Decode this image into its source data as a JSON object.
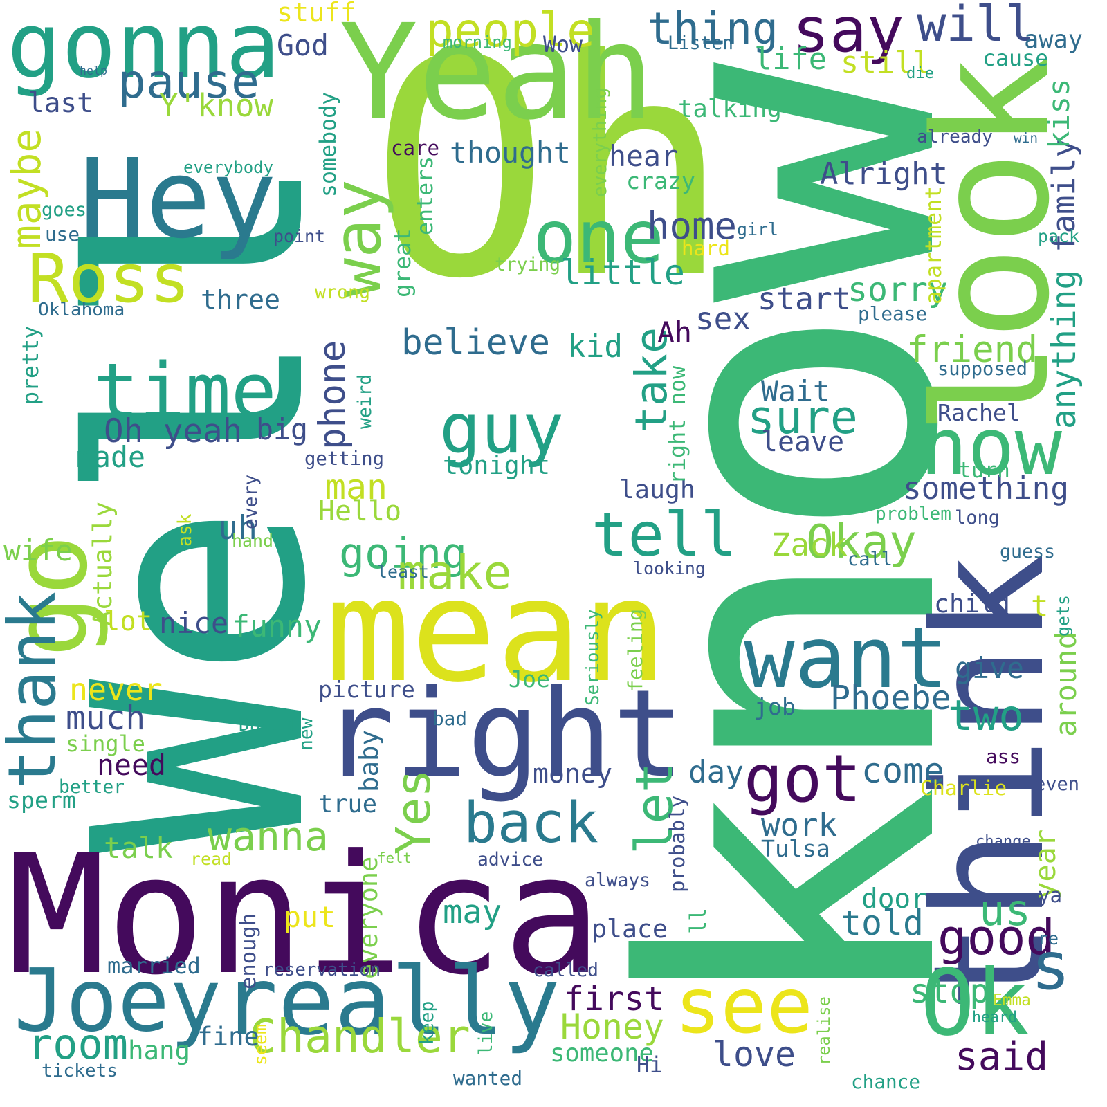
{
  "words": [
    {
      "text": "Well",
      "color": "#22a085"
    },
    {
      "text": "Oh",
      "color": "#9ad83b"
    },
    {
      "text": "know",
      "color": "#3cb876"
    },
    {
      "text": "Yeah",
      "color": "#7bcf4d"
    },
    {
      "text": "Monica",
      "color": "#440a5c"
    },
    {
      "text": "mean",
      "color": "#dce21c"
    },
    {
      "text": "look",
      "color": "#7bcf4d"
    },
    {
      "text": "think",
      "color": "#3e4e8a"
    },
    {
      "text": "right",
      "color": "#3e4e8a"
    },
    {
      "text": "really",
      "color": "#2a7a8e"
    },
    {
      "text": "Hey",
      "color": "#2a7a8e"
    },
    {
      "text": "gonna",
      "color": "#22a085"
    },
    {
      "text": "go",
      "color": "#9ad83b"
    },
    {
      "text": "Joey",
      "color": "#2a7a8e"
    },
    {
      "text": "Ross",
      "color": "#c2df23"
    },
    {
      "text": "want",
      "color": "#2a7a8e"
    },
    {
      "text": "time",
      "color": "#22a085"
    },
    {
      "text": "one",
      "color": "#3cb876"
    },
    {
      "text": "now",
      "color": "#3cb876"
    },
    {
      "text": "guy",
      "color": "#22a085"
    },
    {
      "text": "Ok",
      "color": "#3cb876"
    },
    {
      "text": "see",
      "color": "#ece51b"
    },
    {
      "text": "got",
      "color": "#440a5c"
    },
    {
      "text": "say",
      "color": "#440a5c"
    },
    {
      "text": "tell",
      "color": "#22a085"
    },
    {
      "text": "thank",
      "color": "#2a7a8e"
    },
    {
      "text": "back",
      "color": "#2a7a8e"
    },
    {
      "text": "way",
      "color": "#7bcf4d"
    },
    {
      "text": "thing",
      "color": "#2f6c8e"
    },
    {
      "text": "Yes",
      "color": "#7bcf4d"
    },
    {
      "text": "let",
      "color": "#3cb876"
    },
    {
      "text": "pause",
      "color": "#2f6c8e"
    },
    {
      "text": "people",
      "color": "#c2df23"
    },
    {
      "text": "sure",
      "color": "#22a085"
    },
    {
      "text": "Chandler",
      "color": "#9ad83b"
    },
    {
      "text": "Okay",
      "color": "#7bcf4d"
    },
    {
      "text": "good",
      "color": "#440a5c"
    },
    {
      "text": "s",
      "color": "#2f6c8e"
    },
    {
      "text": "room",
      "color": "#22a085"
    },
    {
      "text": "wanna",
      "color": "#7bcf4d"
    },
    {
      "text": "going",
      "color": "#3cb876"
    },
    {
      "text": "will",
      "color": "#3e4e8a"
    },
    {
      "text": "make",
      "color": "#9ad83b"
    },
    {
      "text": "two",
      "color": "#22a085"
    },
    {
      "text": "take",
      "color": "#22a085"
    },
    {
      "text": "phone",
      "color": "#3e4e8a"
    },
    {
      "text": "great",
      "color": "#3cb876"
    },
    {
      "text": "us",
      "color": "#3cb876"
    },
    {
      "text": "told",
      "color": "#2a7a8e"
    },
    {
      "text": "Alright",
      "color": "#3e4e8a"
    },
    {
      "text": "believe",
      "color": "#2f6c8e"
    },
    {
      "text": "little",
      "color": "#22a085"
    },
    {
      "text": "Oh yeah",
      "color": "#3e4e8a"
    },
    {
      "text": "sorry",
      "color": "#3cb876"
    },
    {
      "text": "friend",
      "color": "#7bcf4d"
    },
    {
      "text": "something",
      "color": "#3e4e8a"
    },
    {
      "text": "Phoebe",
      "color": "#2f6c8e"
    },
    {
      "text": "tonight",
      "color": "#22a085"
    },
    {
      "text": "home",
      "color": "#3e4e8a"
    },
    {
      "text": "start",
      "color": "#3e4e8a"
    },
    {
      "text": "first",
      "color": "#440a5c"
    },
    {
      "text": "love",
      "color": "#3e4e8a"
    },
    {
      "text": "Honey",
      "color": "#9ad83b"
    },
    {
      "text": "someone",
      "color": "#3cb876"
    },
    {
      "text": "said",
      "color": "#440a5c"
    },
    {
      "text": "stop",
      "color": "#3cb876"
    },
    {
      "text": "come",
      "color": "#2f6c8e"
    },
    {
      "text": "still",
      "color": "#c2df23"
    },
    {
      "text": "life",
      "color": "#3cb876"
    },
    {
      "text": "thought",
      "color": "#2f6c8e"
    },
    {
      "text": "talking",
      "color": "#3cb876"
    },
    {
      "text": "hear",
      "color": "#3e4e8a"
    },
    {
      "text": "stuff",
      "color": "#ece51b"
    },
    {
      "text": "Y'know",
      "color": "#9ad83b"
    },
    {
      "text": "last",
      "color": "#3e4e8a"
    },
    {
      "text": "God",
      "color": "#3e4e8a"
    },
    {
      "text": "maybe",
      "color": "#c2df23"
    },
    {
      "text": "three",
      "color": "#2f6c8e"
    },
    {
      "text": "kid",
      "color": "#22a085"
    },
    {
      "text": "sex",
      "color": "#3e4e8a"
    },
    {
      "text": "Ah",
      "color": "#440a5c"
    },
    {
      "text": "big",
      "color": "#3e4e8a"
    },
    {
      "text": "made",
      "color": "#22a085"
    },
    {
      "text": "man",
      "color": "#c2df23"
    },
    {
      "text": "uh",
      "color": "#2f6c8e"
    },
    {
      "text": "Hello",
      "color": "#9ad83b"
    },
    {
      "text": "Actually",
      "color": "#9ad83b"
    },
    {
      "text": "wife",
      "color": "#7bcf4d"
    },
    {
      "text": "lot",
      "color": "#c2df23"
    },
    {
      "text": "nice",
      "color": "#3e4e8a"
    },
    {
      "text": "funny",
      "color": "#3cb876"
    },
    {
      "text": "never",
      "color": "#ece51b"
    },
    {
      "text": "much",
      "color": "#3e4e8a"
    },
    {
      "text": "single",
      "color": "#7bcf4d"
    },
    {
      "text": "need",
      "color": "#440a5c"
    },
    {
      "text": "better",
      "color": "#22a085"
    },
    {
      "text": "sperm",
      "color": "#22a085"
    },
    {
      "text": "talk",
      "color": "#7bcf4d"
    },
    {
      "text": "true",
      "color": "#2f6c8e"
    },
    {
      "text": "married",
      "color": "#2f6c8e"
    },
    {
      "text": "hang",
      "color": "#3cb876"
    },
    {
      "text": "fine",
      "color": "#2f6c8e"
    },
    {
      "text": "tickets",
      "color": "#2f6c8e"
    },
    {
      "text": "picture",
      "color": "#3e4e8a"
    },
    {
      "text": "Joe",
      "color": "#3cb876"
    },
    {
      "text": "David",
      "color": "#22a085"
    },
    {
      "text": "new",
      "color": "#22a085"
    },
    {
      "text": "baby",
      "color": "#2f6c8e"
    },
    {
      "text": "money",
      "color": "#3e4e8a"
    },
    {
      "text": "bad",
      "color": "#2f6c8e"
    },
    {
      "text": "Wait",
      "color": "#2f6c8e"
    },
    {
      "text": "leave",
      "color": "#3e4e8a"
    },
    {
      "text": "laugh",
      "color": "#3e4e8a"
    },
    {
      "text": "right now",
      "color": "#3cb876"
    },
    {
      "text": "Rachel",
      "color": "#3e4e8a"
    },
    {
      "text": "Zack",
      "color": "#9ad83b"
    },
    {
      "text": "child",
      "color": "#3e4e8a"
    },
    {
      "text": "give",
      "color": "#2f6c8e"
    },
    {
      "text": "job",
      "color": "#2f6c8e"
    },
    {
      "text": "day",
      "color": "#2f6c8e"
    },
    {
      "text": "work",
      "color": "#2f6c8e"
    },
    {
      "text": "Tulsa",
      "color": "#2f6c8e"
    },
    {
      "text": "year",
      "color": "#9ad83b"
    },
    {
      "text": "around",
      "color": "#7bcf4d"
    },
    {
      "text": "t",
      "color": "#c2df23"
    },
    {
      "text": "Charlie",
      "color": "#dce21c"
    },
    {
      "text": "door",
      "color": "#22a085"
    },
    {
      "text": "may",
      "color": "#22a085"
    },
    {
      "text": "place",
      "color": "#3e4e8a"
    },
    {
      "text": "put",
      "color": "#ece51b"
    },
    {
      "text": "everyone",
      "color": "#7bcf4d"
    },
    {
      "text": "reservation",
      "color": "#3e4e8a"
    },
    {
      "text": "ll",
      "color": "#3cb876"
    },
    {
      "text": "ya",
      "color": "#3e4e8a"
    },
    {
      "text": "anything",
      "color": "#22a085"
    },
    {
      "text": "family",
      "color": "#3e4e8a"
    },
    {
      "text": "kiss",
      "color": "#3cb876"
    },
    {
      "text": "win",
      "color": "#2f6c8e"
    },
    {
      "text": "already",
      "color": "#3e4e8a"
    },
    {
      "text": "die",
      "color": "#22a085"
    },
    {
      "text": "cause",
      "color": "#22a085"
    },
    {
      "text": "away",
      "color": "#2f6c8e"
    },
    {
      "text": "Listen",
      "color": "#2f6c8e"
    },
    {
      "text": "Wow",
      "color": "#3e4e8a"
    },
    {
      "text": "morning",
      "color": "#3cb876"
    },
    {
      "text": "help",
      "color": "#2f6c8e"
    },
    {
      "text": "somebody",
      "color": "#22a085"
    },
    {
      "text": "everything",
      "color": "#7bcf4d"
    },
    {
      "text": "care",
      "color": "#440a5c"
    },
    {
      "text": "everybody",
      "color": "#22a085"
    },
    {
      "text": "enters",
      "color": "#3cb876"
    },
    {
      "text": "crazy",
      "color": "#3cb876"
    },
    {
      "text": "hard",
      "color": "#ece51b"
    },
    {
      "text": "girl",
      "color": "#2f6c8e"
    },
    {
      "text": "point",
      "color": "#3e4e8a"
    },
    {
      "text": "goes",
      "color": "#22a085"
    },
    {
      "text": "use",
      "color": "#2f6c8e"
    },
    {
      "text": "trying",
      "color": "#7bcf4d"
    },
    {
      "text": "apartment",
      "color": "#c2df23"
    },
    {
      "text": "pack",
      "color": "#22a085"
    },
    {
      "text": "Oklahoma",
      "color": "#2f6c8e"
    },
    {
      "text": "wrong",
      "color": "#c2df23"
    },
    {
      "text": "please",
      "color": "#2f6c8e"
    },
    {
      "text": "supposed",
      "color": "#2f6c8e"
    },
    {
      "text": "pretty",
      "color": "#22a085"
    },
    {
      "text": "weird",
      "color": "#22a085"
    },
    {
      "text": "getting",
      "color": "#3e4e8a"
    },
    {
      "text": "every",
      "color": "#3e4e8a"
    },
    {
      "text": "turn",
      "color": "#3cb876"
    },
    {
      "text": "problem",
      "color": "#3cb876"
    },
    {
      "text": "long",
      "color": "#3e4e8a"
    },
    {
      "text": "ask",
      "color": "#c2df23"
    },
    {
      "text": "hand",
      "color": "#7bcf4d"
    },
    {
      "text": "least",
      "color": "#2f6c8e"
    },
    {
      "text": "looking",
      "color": "#3e4e8a"
    },
    {
      "text": "call",
      "color": "#2f6c8e"
    },
    {
      "text": "guess",
      "color": "#2f6c8e"
    },
    {
      "text": "Seriously",
      "color": "#3cb876"
    },
    {
      "text": "feeling",
      "color": "#7bcf4d"
    },
    {
      "text": "gets",
      "color": "#22a085"
    },
    {
      "text": "ass",
      "color": "#440a5c"
    },
    {
      "text": "even",
      "color": "#3e4e8a"
    },
    {
      "text": "change",
      "color": "#3e4e8a"
    },
    {
      "text": "probably",
      "color": "#3e4e8a"
    },
    {
      "text": "felt",
      "color": "#7bcf4d"
    },
    {
      "text": "read",
      "color": "#c2df23"
    },
    {
      "text": "advice",
      "color": "#3e4e8a"
    },
    {
      "text": "always",
      "color": "#3e4e8a"
    },
    {
      "text": "enough",
      "color": "#3e4e8a"
    },
    {
      "text": "called",
      "color": "#3e4e8a"
    },
    {
      "text": "re",
      "color": "#2f6c8e"
    },
    {
      "text": "keep",
      "color": "#22a085"
    },
    {
      "text": "live",
      "color": "#3cb876"
    },
    {
      "text": "seem",
      "color": "#ece51b"
    },
    {
      "text": "realise",
      "color": "#7bcf4d"
    },
    {
      "text": "Emma",
      "color": "#c2df23"
    },
    {
      "text": "heard",
      "color": "#22a085"
    },
    {
      "text": "Hi",
      "color": "#3e4e8a"
    },
    {
      "text": "wanted",
      "color": "#2f6c8e"
    },
    {
      "text": "chance",
      "color": "#22a085"
    }
  ]
}
